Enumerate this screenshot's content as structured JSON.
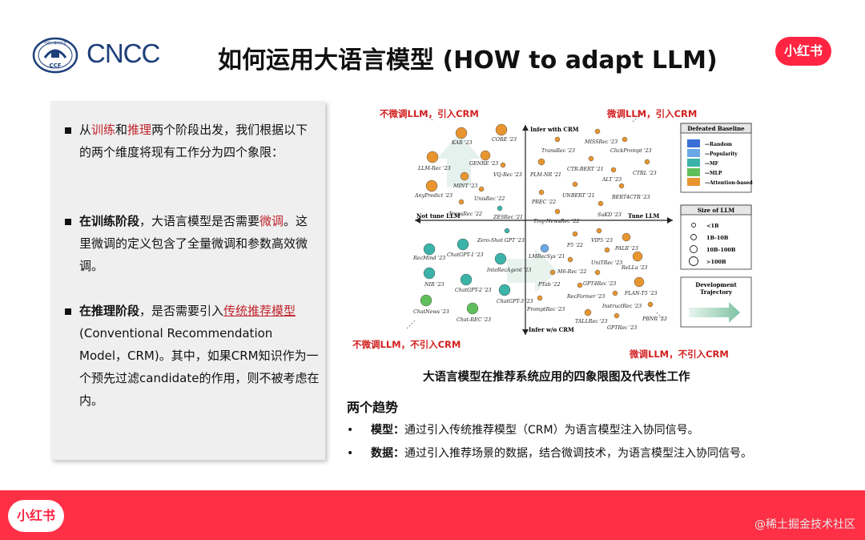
{
  "header": {
    "logo_text": "CNCC",
    "logo_emblem_text": [
      "中国计算机学会",
      "CCF"
    ],
    "title": "如何运用大语言模型 (HOW to adapt LLM)",
    "brand": "小红书"
  },
  "left_panel": {
    "bullet1": {
      "p1": "从",
      "p2": "训练",
      "p3": "和",
      "p4": "推理",
      "p5": "两个阶段出发，我们根据以下的两个维度将现有工作分为四个象限："
    },
    "bullet2": {
      "p1": "在训练阶段",
      "p2": "，大语言模型是否需要",
      "p3": "微调",
      "p4": "。这里微调的定义包含了全量微调和参数高效微调。"
    },
    "bullet3": {
      "p1": "在推理阶段",
      "p2": "，是否需要引入",
      "p3": "传统推荐模型",
      "p4": "(Conventional Recommendation Model，CRM)。其中，如果CRM知识作为一个预先过滤candidate的作用，则不被考虑在内。"
    }
  },
  "figure": {
    "caption": "大语言模型在推荐系统应用的四象限图及代表性工作",
    "quadrant_labels": {
      "top_left": "不微调LLM，引入CRM",
      "top_right": "微调LLM，引入CRM",
      "bottom_left": "不微调LLM，不引入CRM",
      "bottom_right": "微调LLM，不引入CRM"
    },
    "axes": {
      "top": "Infer with CRM",
      "bottom": "Infer w/o CRM",
      "left": "Not tune LLM",
      "right": "Tune LLM"
    },
    "legend_baseline": {
      "title": "Defeated Baseline",
      "items": [
        {
          "label": "Random",
          "color": "#3a6fd8"
        },
        {
          "label": "Popularity",
          "color": "#6aa7e6"
        },
        {
          "label": "MF",
          "color": "#3bb3a8"
        },
        {
          "label": "MLP",
          "color": "#5fbf5a"
        },
        {
          "label": "Attention-based",
          "color": "#e8952f"
        }
      ]
    },
    "legend_size": {
      "title": "Size of LLM",
      "items": [
        "<1B",
        "1B-10B",
        "10B-100B",
        ">100B"
      ]
    },
    "legend_trajectory": {
      "title": "Development Trajectory"
    },
    "works": [
      {
        "name": "KAR '23",
        "color": "#e8952f"
      },
      {
        "name": "CORE '23",
        "color": "#e8952f"
      },
      {
        "name": "GENRE '23",
        "color": "#e8952f"
      },
      {
        "name": "LLM-Rec '23",
        "color": "#e8952f"
      },
      {
        "name": "VQ-Rec '23",
        "color": "#e8952f"
      },
      {
        "name": "MINT '23",
        "color": "#e8952f"
      },
      {
        "name": "AnyPredict '23",
        "color": "#e8952f"
      },
      {
        "name": "UnisRec '22",
        "color": "#e8952f"
      },
      {
        "name": "TransRec '22",
        "color": "#e8952f"
      },
      {
        "name": "ZESRec '21",
        "color": "#3bb3a8"
      },
      {
        "name": "MISSRec '23",
        "color": "#e8952f"
      },
      {
        "name": "TransRec '23",
        "color": "#e8952f"
      },
      {
        "name": "ClickPrompt '23",
        "color": "#e8952f"
      },
      {
        "name": "CTR-BERT '21",
        "color": "#e8952f"
      },
      {
        "name": "PLM-NR '21",
        "color": "#e8952f"
      },
      {
        "name": "ALT '23",
        "color": "#e8952f"
      },
      {
        "name": "CTRL '23",
        "color": "#e8952f"
      },
      {
        "name": "UNBERT '21",
        "color": "#e8952f"
      },
      {
        "name": "BERT4CTR '23",
        "color": "#e8952f"
      },
      {
        "name": "PREC '22",
        "color": "#e8952f"
      },
      {
        "name": "Tiny-NewsRec '22",
        "color": "#e8952f"
      },
      {
        "name": "SuKD '23",
        "color": "#e8952f"
      },
      {
        "name": "Zero-Shot GPT '23",
        "color": "#3bb3a8"
      },
      {
        "name": "ChatGPT-1 '23",
        "color": "#3bb3a8"
      },
      {
        "name": "RecMind '23",
        "color": "#3bb3a8"
      },
      {
        "name": "InteRecAgent '23",
        "color": "#3bb3a8"
      },
      {
        "name": "NIR '23",
        "color": "#3bb3a8"
      },
      {
        "name": "ChatGPT-2 '23",
        "color": "#3bb3a8"
      },
      {
        "name": "ChatGPT-3 '23",
        "color": "#3bb3a8"
      },
      {
        "name": "ChatNews '23",
        "color": "#5fbf5a"
      },
      {
        "name": "Chat-REC '23",
        "color": "#5fbf5a"
      },
      {
        "name": "P5 '22",
        "color": "#e8952f"
      },
      {
        "name": "VIP5 '23",
        "color": "#e8952f"
      },
      {
        "name": "PALR '23",
        "color": "#e8952f"
      },
      {
        "name": "LMRecSys '21",
        "color": "#6aa7e6"
      },
      {
        "name": "UniTRec '23",
        "color": "#e8952f"
      },
      {
        "name": "ReLLa '23",
        "color": "#e8952f"
      },
      {
        "name": "M6-Rec '22",
        "color": "#e8952f"
      },
      {
        "name": "GPT4Rec '23",
        "color": "#e8952f"
      },
      {
        "name": "PTab '22",
        "color": "#e8952f"
      },
      {
        "name": "FLAN-T5 '23",
        "color": "#e8952f"
      },
      {
        "name": "RecFormer '23",
        "color": "#e8952f"
      },
      {
        "name": "PromptRec '23",
        "color": "#e8952f"
      },
      {
        "name": "InstructRec '23",
        "color": "#e8952f"
      },
      {
        "name": "TALLRec '23",
        "color": "#e8952f"
      },
      {
        "name": "PBNR '23",
        "color": "#e8952f"
      },
      {
        "name": "GPTRec '23",
        "color": "#e8952f"
      }
    ]
  },
  "trends": {
    "title": "两个趋势",
    "items": [
      {
        "bullet": "•",
        "label": "模型：",
        "text": "通过引入传统推荐模型（CRM）为语言模型注入协同信号。"
      },
      {
        "bullet": "•",
        "label": "数据：",
        "text": "通过引入推荐场景的数据，结合微调技术，为语言模型注入协同信号。"
      }
    ]
  },
  "footer": {
    "brand": "小红书",
    "watermark": "@稀土掘金技术社区"
  }
}
